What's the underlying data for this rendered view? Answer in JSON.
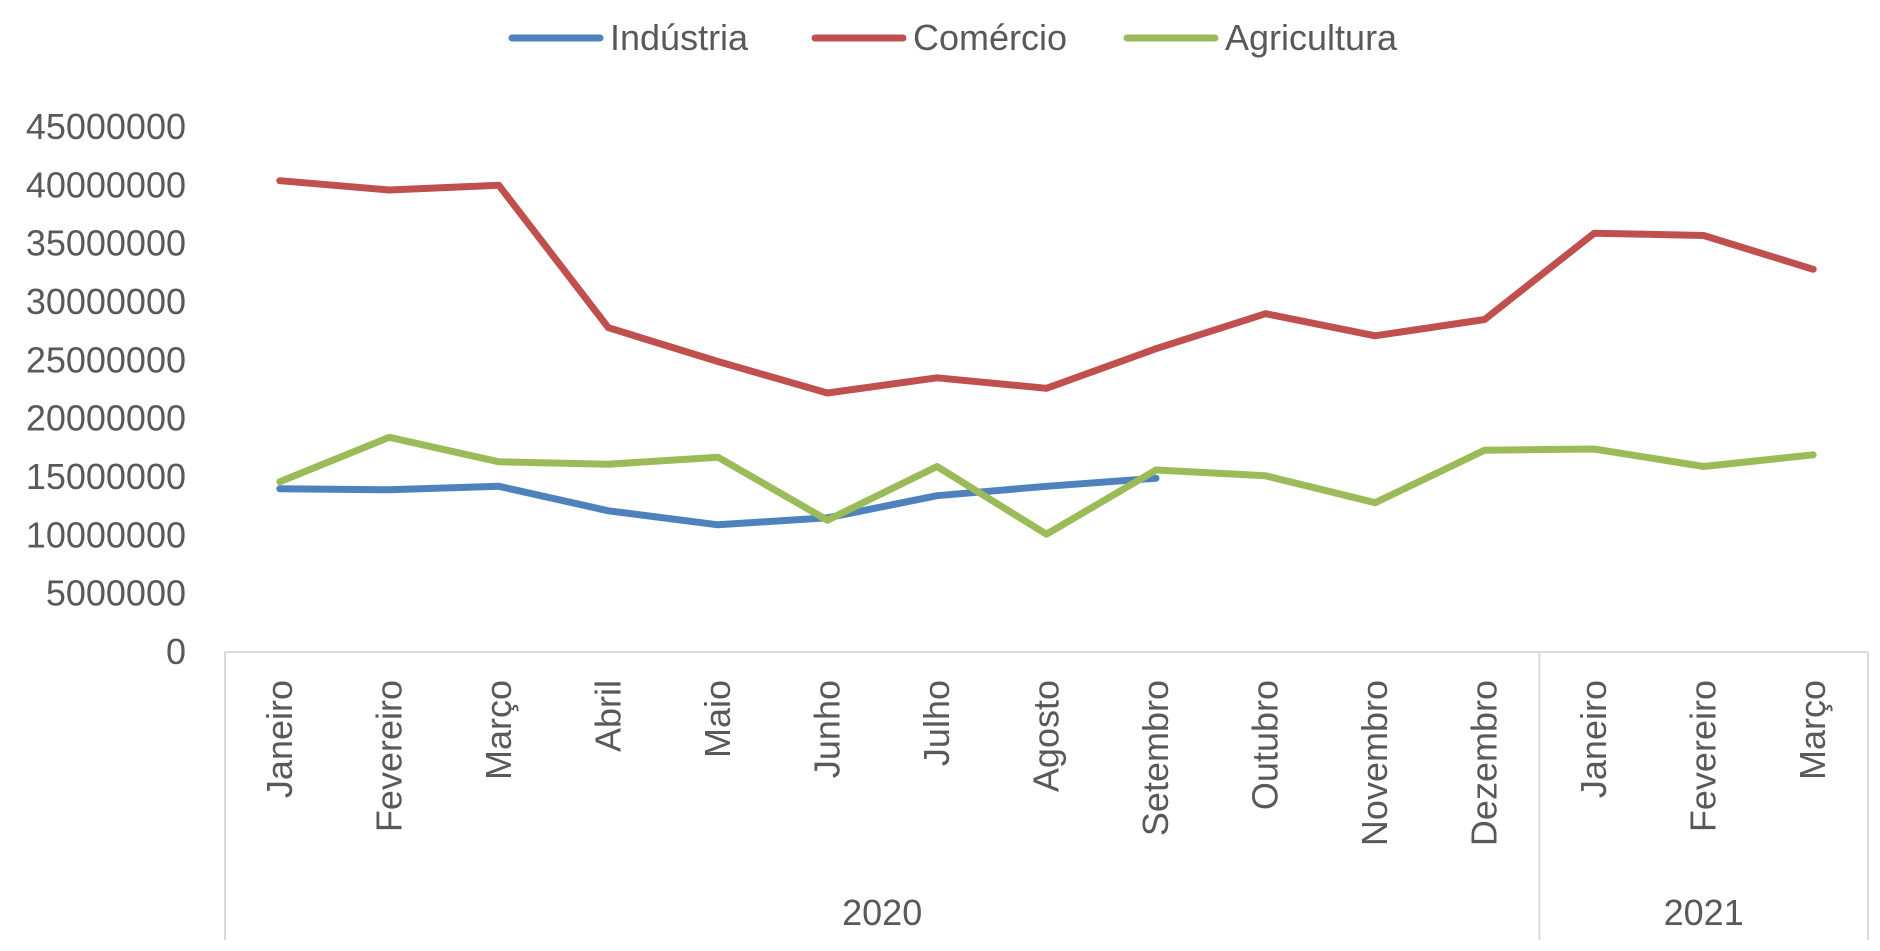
{
  "chart_data": {
    "type": "line",
    "title": "",
    "xlabel": "",
    "ylabel": "",
    "ylim": [
      0,
      45000000
    ],
    "yticks": [
      0,
      5000000,
      10000000,
      15000000,
      20000000,
      25000000,
      30000000,
      35000000,
      40000000,
      45000000
    ],
    "categories": [
      "Janeiro",
      "Fevereiro",
      "Março",
      "Abril",
      "Maio",
      "Junho",
      "Julho",
      "Agosto",
      "Setembro",
      "Outubro",
      "Novembro",
      "Dezembro",
      "Janeiro",
      "Fevereiro",
      "Março"
    ],
    "groups": [
      {
        "label": "2020",
        "count": 12
      },
      {
        "label": "2021",
        "count": 3
      }
    ],
    "legend_position": "top",
    "grid": false,
    "series": [
      {
        "name": "Indústria",
        "color": "#4f81bd",
        "values": [
          14000000,
          13900000,
          14200000,
          12100000,
          10900000,
          11500000,
          13400000,
          14200000,
          14900000,
          null,
          null,
          null,
          null,
          null,
          null
        ]
      },
      {
        "name": "Comércio",
        "color": "#c0504d",
        "values": [
          40400000,
          39600000,
          40000000,
          27800000,
          24900000,
          22200000,
          23500000,
          22600000,
          26000000,
          29000000,
          27100000,
          28500000,
          35900000,
          35700000,
          32800000
        ]
      },
      {
        "name": "Agricultura",
        "color": "#9bbb59",
        "values": [
          14600000,
          18400000,
          16300000,
          16100000,
          16700000,
          11300000,
          15900000,
          10100000,
          15600000,
          15100000,
          12800000,
          17300000,
          17400000,
          15900000,
          16900000
        ]
      }
    ]
  }
}
